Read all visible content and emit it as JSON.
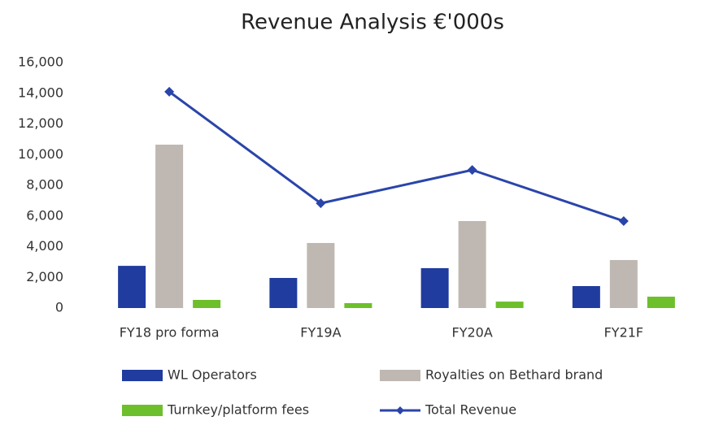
{
  "chart_data": {
    "type": "bar",
    "title": "Revenue Analysis €'000s",
    "categories": [
      "FY18 pro forma",
      "FY19A",
      "FY20A",
      "FY21F"
    ],
    "series": [
      {
        "name": "WL Operators",
        "color": "#1f3c9e",
        "kind": "bar",
        "values": [
          2750,
          1960,
          2600,
          1430
        ]
      },
      {
        "name": "Royalties on Bethard brand",
        "color": "#bfb8b2",
        "kind": "bar",
        "values": [
          10650,
          4240,
          5670,
          3130
        ]
      },
      {
        "name": "Turnkey/platform fees",
        "color": "#6dbf2b",
        "kind": "bar",
        "values": [
          530,
          320,
          420,
          740
        ]
      },
      {
        "name": "Total Revenue",
        "color": "#2a45aa",
        "kind": "line",
        "values": [
          14100,
          6830,
          9000,
          5670
        ]
      }
    ],
    "ylim": [
      0,
      16000
    ],
    "yticks": [
      0,
      {
        "value": 2000,
        "label": "2,000"
      },
      {
        "value": 4000,
        "label": "4,000"
      },
      {
        "value": 6000,
        "label": "6,000"
      },
      {
        "value": 8000,
        "label": "8,000"
      },
      {
        "value": 10000,
        "label": "10,000"
      },
      {
        "value": 12000,
        "label": "12,000"
      },
      {
        "value": 14000,
        "label": "14,000"
      },
      {
        "value": 16000,
        "label": "16,000"
      }
    ],
    "grid": false
  }
}
